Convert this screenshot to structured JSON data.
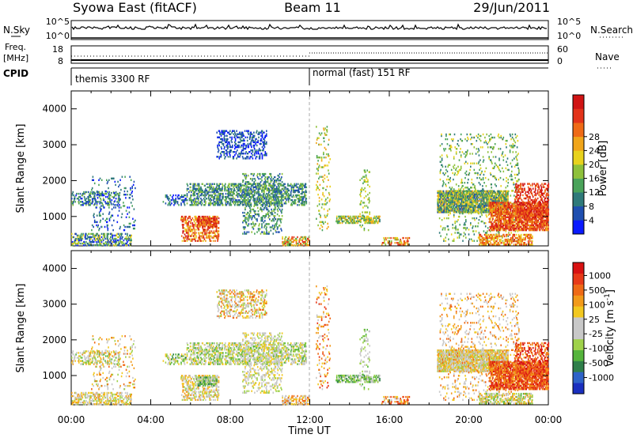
{
  "header": {
    "title": "Syowa East (fitACF)",
    "beam": "Beam 11",
    "date": "29/Jun/2011"
  },
  "top_panels": {
    "nsky_label": "N.Sky",
    "nsky_ticks": [
      "10^5",
      "10^0"
    ],
    "nsearch_label": "N.Search",
    "nsearch_ticks": [
      "10^5",
      "10^0"
    ],
    "freq_label_1": "Freq.",
    "freq_label_2": "[MHz]",
    "freq_ticks": [
      "18",
      "8"
    ],
    "nave_label": "Nave",
    "nave_ticks": [
      "60",
      "0"
    ],
    "cpid_label": "CPID",
    "cpid_modes": [
      {
        "label": "themis 3300 RF",
        "start_hour": 0
      },
      {
        "label": "normal (fast) 151 RF",
        "start_hour": 12
      }
    ]
  },
  "chart_data": [
    {
      "type": "heatmap",
      "name": "power",
      "ylabel": "Slant Range [km]",
      "ylim": [
        180,
        4500
      ],
      "yticks": [
        "1000",
        "2000",
        "3000",
        "4000"
      ],
      "xlim_hours": [
        0,
        24
      ],
      "xticks": [
        "00:00",
        "04:00",
        "08:00",
        "12:00",
        "16:00",
        "20:00",
        "00:00"
      ],
      "colorbar": {
        "label": "Power [dB]",
        "ticks": [
          "4",
          "8",
          "12",
          "16",
          "20",
          "24",
          "28"
        ],
        "colors": [
          "#0a1aff",
          "#1f4fb0",
          "#2f7a7a",
          "#4aa35a",
          "#8ec13a",
          "#e8d21c",
          "#f0a51a",
          "#ef6a16",
          "#e3331a",
          "#d01414"
        ]
      }
    },
    {
      "type": "heatmap",
      "name": "velocity",
      "ylabel": "Slant Range [km]",
      "ylim": [
        180,
        4500
      ],
      "yticks": [
        "1000",
        "2000",
        "3000",
        "4000"
      ],
      "xlim_hours": [
        0,
        24
      ],
      "xticks": [
        "00:00",
        "04:00",
        "08:00",
        "12:00",
        "16:00",
        "20:00",
        "00:00"
      ],
      "xlabel": "Time UT",
      "colorbar": {
        "label": "Velocity [m s^-1]",
        "ticks": [
          "1000",
          "500",
          "100",
          "25",
          "-25",
          "-100",
          "-500",
          "-1000"
        ],
        "colors": [
          "#1a2fbf",
          "#2e63c8",
          "#2f7f4a",
          "#55b43c",
          "#9fd24a",
          "#c8c8c8",
          "#c8c8c8",
          "#f2c81f",
          "#f29a1a",
          "#ef6a16",
          "#e83a18",
          "#d81212"
        ]
      }
    }
  ]
}
